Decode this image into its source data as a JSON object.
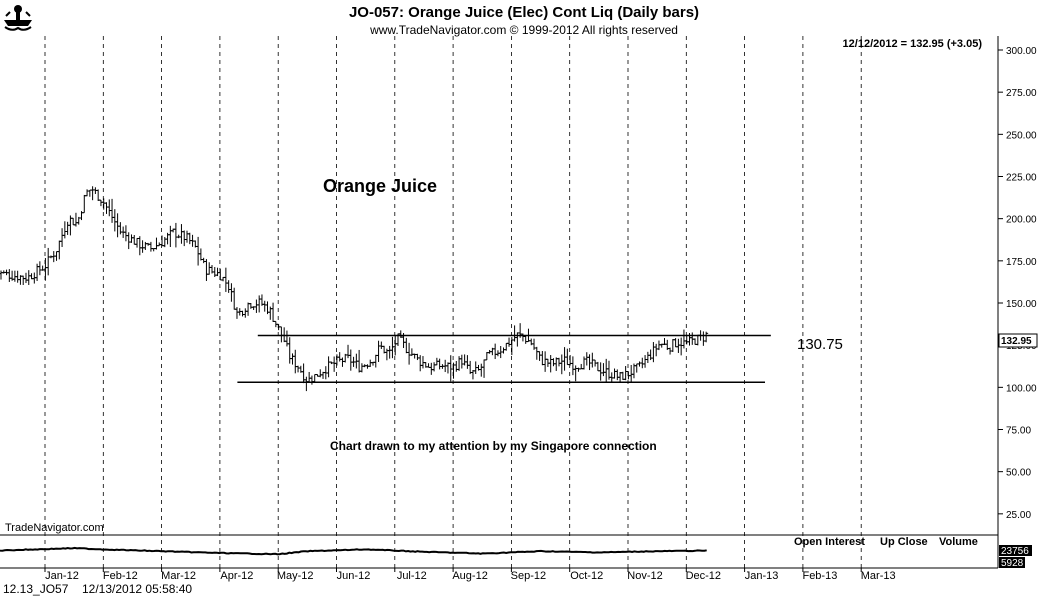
{
  "header": {
    "title": "JO-057:  Orange Juice (Elec) Cont Liq  (Daily bars)",
    "subtitle": "www.TradeNavigator.com © 1999-2012 All rights reserved",
    "last_info": "12/12/2012 = 132.95 (+3.05)"
  },
  "logo": {
    "name": "bull-bear-logo"
  },
  "annotations": {
    "orange_juice": "Orange Juice",
    "note": "Chart drawn to my attention by my Singapore connection",
    "level_label": "130.75",
    "brand": "TradeNavigator.com"
  },
  "lower_panel": {
    "labels": [
      "Open Interest",
      "Up Close",
      "Volume"
    ],
    "open_interest_value": "23756",
    "volume_value": "5928"
  },
  "footer": {
    "symbol": "12.13_JO57",
    "datetime": "12/13/2012 05:58:40"
  },
  "chart_data": {
    "type": "ohlc",
    "title": "JO-057:  Orange Juice (Elec) Cont Liq  (Daily bars)",
    "ylim": [
      0,
      312
    ],
    "y_ticks": [
      "300.00",
      "275.00",
      "250.00",
      "225.00",
      "200.00",
      "175.00",
      "150.00",
      "125.00",
      "100.00",
      "75.00",
      "50.00",
      "25.00"
    ],
    "y_tick_values": [
      300,
      275,
      250,
      225,
      200,
      175,
      150,
      125,
      100,
      75,
      50,
      25
    ],
    "months": [
      "Jan-12",
      "Feb-12",
      "Mar-12",
      "Apr-12",
      "May-12",
      "Jun-12",
      "Jul-12",
      "Aug-12",
      "Sep-12",
      "Oct-12",
      "Nov-12",
      "Dec-12",
      "Jan-13",
      "Feb-13",
      "Mar-13"
    ],
    "last_price": "132.95",
    "last_value": 132.95,
    "price_path": [
      {
        "m": -0.85,
        "p": 168
      },
      {
        "m": -0.5,
        "p": 166
      },
      {
        "m": -0.3,
        "p": 165
      },
      {
        "m": 0.0,
        "p": 172
      },
      {
        "m": 0.2,
        "p": 182
      },
      {
        "m": 0.4,
        "p": 200
      },
      {
        "m": 0.55,
        "p": 197
      },
      {
        "m": 0.7,
        "p": 215
      },
      {
        "m": 0.8,
        "p": 218
      },
      {
        "m": 1.0,
        "p": 210
      },
      {
        "m": 1.3,
        "p": 192
      },
      {
        "m": 1.6,
        "p": 185
      },
      {
        "m": 1.8,
        "p": 182
      },
      {
        "m": 2.0,
        "p": 186
      },
      {
        "m": 2.2,
        "p": 192
      },
      {
        "m": 2.45,
        "p": 188
      },
      {
        "m": 2.6,
        "p": 182
      },
      {
        "m": 2.75,
        "p": 170
      },
      {
        "m": 3.0,
        "p": 167
      },
      {
        "m": 3.15,
        "p": 160
      },
      {
        "m": 3.3,
        "p": 143
      },
      {
        "m": 3.5,
        "p": 150
      },
      {
        "m": 3.7,
        "p": 150
      },
      {
        "m": 3.85,
        "p": 146
      },
      {
        "m": 4.0,
        "p": 135
      },
      {
        "m": 4.1,
        "p": 128
      },
      {
        "m": 4.2,
        "p": 118
      },
      {
        "m": 4.35,
        "p": 112
      },
      {
        "m": 4.5,
        "p": 104
      },
      {
        "m": 4.6,
        "p": 106
      },
      {
        "m": 4.8,
        "p": 111
      },
      {
        "m": 5.0,
        "p": 115
      },
      {
        "m": 5.2,
        "p": 117
      },
      {
        "m": 5.4,
        "p": 112
      },
      {
        "m": 5.6,
        "p": 116
      },
      {
        "m": 5.75,
        "p": 124
      },
      {
        "m": 5.9,
        "p": 120
      },
      {
        "m": 6.05,
        "p": 129
      },
      {
        "m": 6.2,
        "p": 123
      },
      {
        "m": 6.4,
        "p": 116
      },
      {
        "m": 6.6,
        "p": 112
      },
      {
        "m": 6.8,
        "p": 113
      },
      {
        "m": 7.0,
        "p": 112
      },
      {
        "m": 7.15,
        "p": 116
      },
      {
        "m": 7.3,
        "p": 108
      },
      {
        "m": 7.45,
        "p": 110
      },
      {
        "m": 7.6,
        "p": 119
      },
      {
        "m": 7.8,
        "p": 122
      },
      {
        "m": 8.0,
        "p": 128
      },
      {
        "m": 8.1,
        "p": 131
      },
      {
        "m": 8.2,
        "p": 130
      },
      {
        "m": 8.35,
        "p": 126
      },
      {
        "m": 8.5,
        "p": 116
      },
      {
        "m": 8.7,
        "p": 114
      },
      {
        "m": 8.9,
        "p": 116
      },
      {
        "m": 9.1,
        "p": 113
      },
      {
        "m": 9.3,
        "p": 115
      },
      {
        "m": 9.5,
        "p": 111
      },
      {
        "m": 9.7,
        "p": 108
      },
      {
        "m": 9.85,
        "p": 106
      },
      {
        "m": 10.0,
        "p": 108
      },
      {
        "m": 10.2,
        "p": 112
      },
      {
        "m": 10.35,
        "p": 118
      },
      {
        "m": 10.55,
        "p": 126
      },
      {
        "m": 10.7,
        "p": 124
      },
      {
        "m": 10.85,
        "p": 127
      },
      {
        "m": 11.0,
        "p": 126
      },
      {
        "m": 11.15,
        "p": 128
      },
      {
        "m": 11.32,
        "p": 130
      },
      {
        "m": 11.38,
        "p": 133
      }
    ],
    "open_interest_path": [
      {
        "m": -0.85,
        "r": 0.55
      },
      {
        "m": 0.5,
        "r": 0.35
      },
      {
        "m": 1.0,
        "r": 0.45
      },
      {
        "m": 2.0,
        "r": 0.6
      },
      {
        "m": 3.0,
        "r": 0.75
      },
      {
        "m": 4.0,
        "r": 0.85
      },
      {
        "m": 4.5,
        "r": 0.6
      },
      {
        "m": 5.5,
        "r": 0.45
      },
      {
        "m": 6.5,
        "r": 0.65
      },
      {
        "m": 7.5,
        "r": 0.8
      },
      {
        "m": 8.5,
        "r": 0.6
      },
      {
        "m": 9.5,
        "r": 0.7
      },
      {
        "m": 10.5,
        "r": 0.6
      },
      {
        "m": 11.38,
        "r": 0.55
      }
    ],
    "lines": [
      {
        "name": "resistance",
        "value": 130.75,
        "from_m": 3.65,
        "to_m": 12.45
      },
      {
        "name": "support",
        "value": 103.0,
        "from_m": 3.3,
        "to_m": 12.35
      }
    ]
  }
}
